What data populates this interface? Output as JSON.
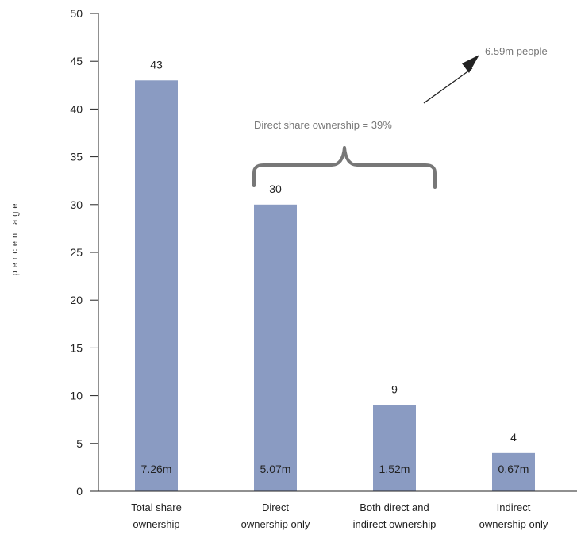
{
  "chart_data": {
    "type": "bar",
    "ylabel": "percentage",
    "ylim": [
      0,
      50
    ],
    "yticks": [
      0,
      5,
      10,
      15,
      20,
      25,
      30,
      35,
      40,
      45,
      50
    ],
    "categories": [
      [
        "Total share",
        "ownership"
      ],
      [
        "Direct",
        "ownership only"
      ],
      [
        "Both direct and",
        "indirect ownership"
      ],
      [
        "Indirect",
        "ownership only"
      ]
    ],
    "values": [
      43,
      30,
      9,
      4
    ],
    "value_labels": [
      "43",
      "30",
      "9",
      "4"
    ],
    "people_labels": [
      "7.26m",
      "5.07m",
      "1.52m",
      "0.67m"
    ],
    "annotations": {
      "brace_label": "Direct share ownership = 39%",
      "arrow_label": "6.59m people"
    },
    "colors": {
      "bar": "#8a9bc2",
      "axis": "#222222",
      "brace": "#777777"
    }
  }
}
